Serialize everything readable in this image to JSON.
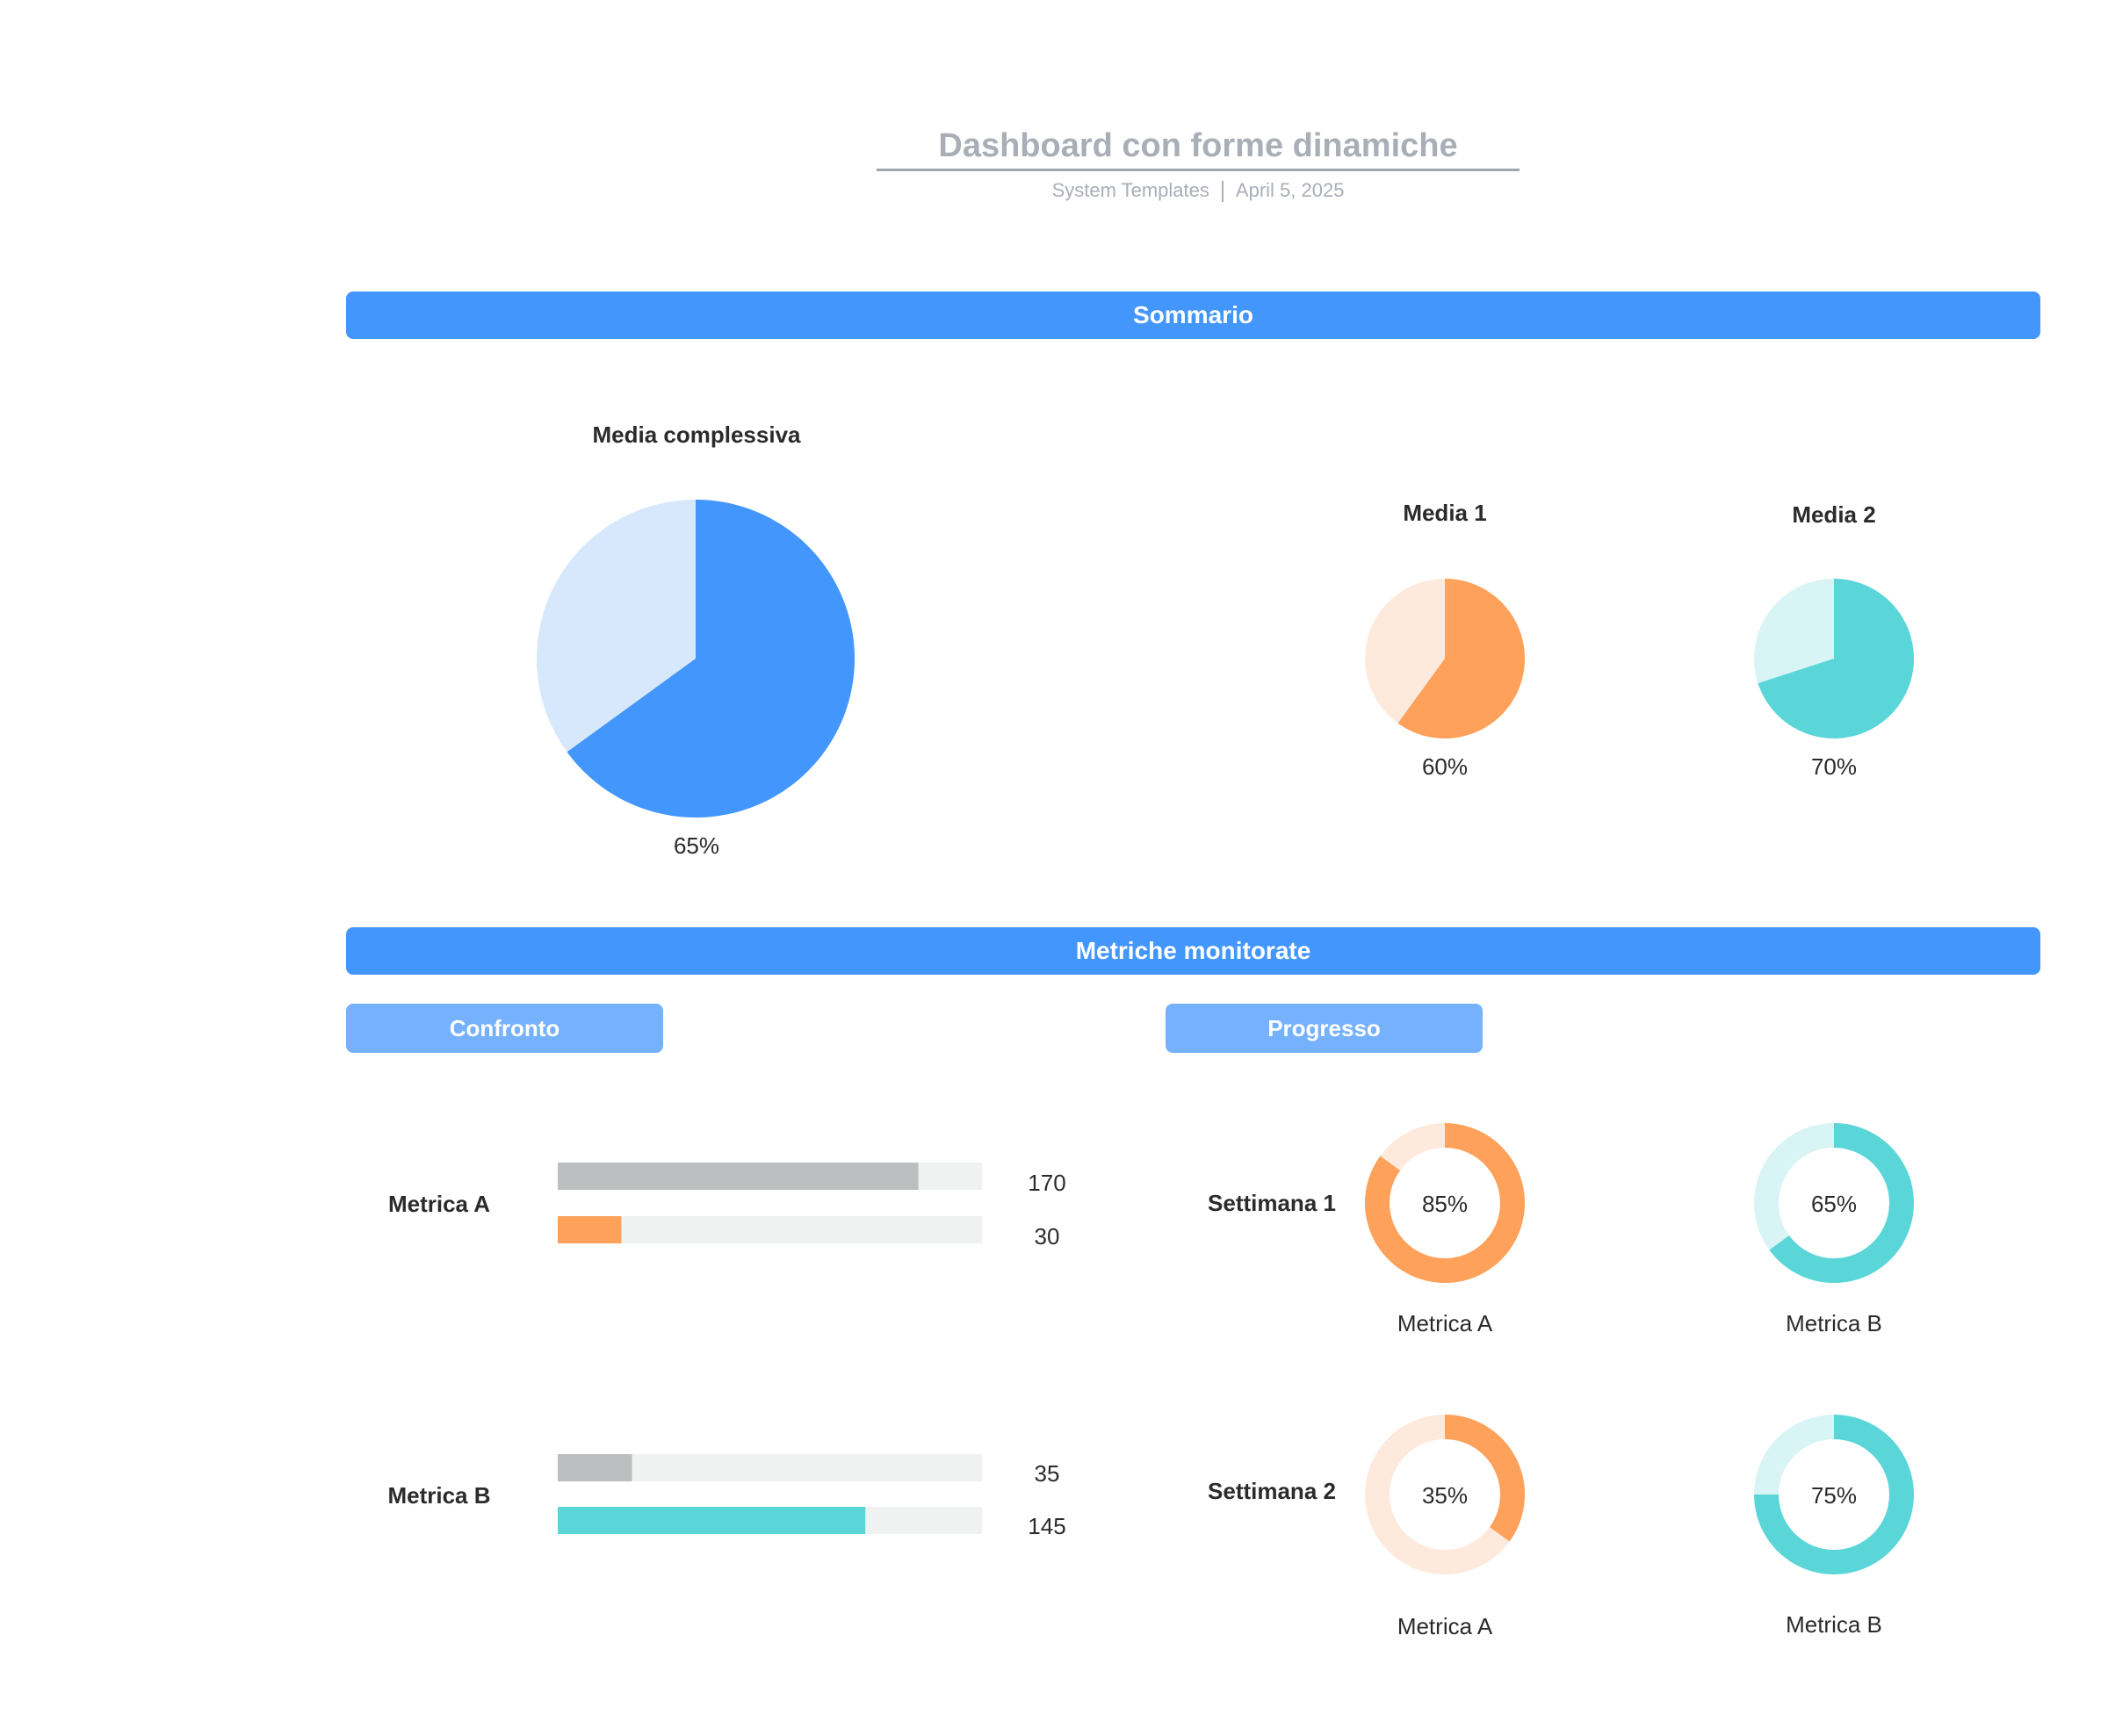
{
  "header": {
    "title": "Dashboard con forme dinamiche",
    "source": "System Templates",
    "date": "April 5, 2025"
  },
  "sections": {
    "summary": "Sommario",
    "metrics": "Metriche monitorate",
    "comparison": "Confronto",
    "progress": "Progresso"
  },
  "chart_data": [
    {
      "type": "pie",
      "title": "Media complessiva",
      "value_label": "65%",
      "value": 65,
      "colors": {
        "fill": "#4396fc",
        "track": "#d7e8fd"
      }
    },
    {
      "type": "pie",
      "title": "Media 1",
      "value_label": "60%",
      "value": 60,
      "colors": {
        "fill": "#fea15a",
        "track": "#fdeadd"
      }
    },
    {
      "type": "pie",
      "title": "Media 2",
      "value_label": "70%",
      "value": 70,
      "colors": {
        "fill": "#5ad6d9",
        "track": "#d9f4f4"
      }
    },
    {
      "type": "bar",
      "title": "Confronto",
      "categories": [
        "Metrica A",
        "Metrica B"
      ],
      "series": [
        {
          "values": [
            170,
            35
          ],
          "colors": [
            "#bdbebf",
            "#bdbebf"
          ]
        },
        {
          "values": [
            30,
            145
          ],
          "colors": [
            "#fea15a",
            "#5ad6d9"
          ]
        }
      ],
      "max": 200,
      "track_color": "#f0f1f1"
    },
    {
      "type": "donut",
      "title": "Progresso",
      "rows": [
        {
          "label": "Settimana 1",
          "items": [
            {
              "metric": "Metrica A",
              "value": 85,
              "value_label": "85%",
              "fill": "#fea15a",
              "track": "#fdeadd"
            },
            {
              "metric": "Metrica B",
              "value": 65,
              "value_label": "65%",
              "fill": "#5ad6d9",
              "track": "#d9f4f4"
            }
          ]
        },
        {
          "label": "Settimana 2",
          "items": [
            {
              "metric": "Metrica A",
              "value": 35,
              "value_label": "35%",
              "fill": "#fea15a",
              "track": "#fdeadd"
            },
            {
              "metric": "Metrica B",
              "value": 75,
              "value_label": "75%",
              "fill": "#5ad6d9",
              "track": "#d9f4f4"
            }
          ]
        }
      ]
    }
  ]
}
